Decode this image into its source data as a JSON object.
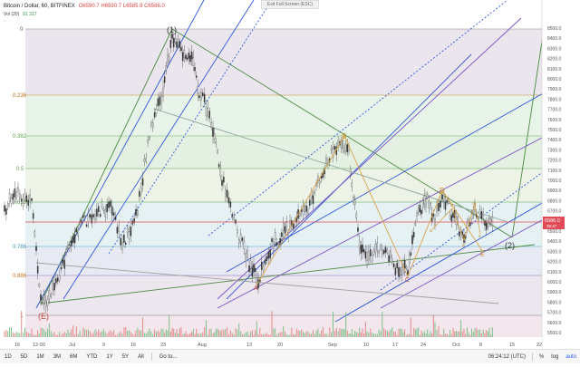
{
  "header": {
    "title": "Bitcoin / Dollar, 60, BITFINEX",
    "ohlc": "O6590.7 H6590.7 L6585.9 C6586.0",
    "vol_label": "Vol (20)",
    "vol_values": "61  317"
  },
  "exit_banner": "Exit Full Screen (ESC)",
  "fib_levels": [
    "0",
    "0.236",
    "0.382",
    "0.5",
    "0.618",
    "0.786",
    "0.886",
    "1"
  ],
  "price_ticks": [
    "8500.0",
    "8400.0",
    "8300.0",
    "8200.0",
    "8100.0",
    "8000.0",
    "7900.0",
    "7800.0",
    "7700.0",
    "7600.0",
    "7500.0",
    "7400.0",
    "7300.0",
    "7200.0",
    "7100.0",
    "7000.0",
    "6900.0",
    "6800.0",
    "6700.0",
    "6600.0",
    "6500.0",
    "6400.0",
    "6300.0",
    "6200.0",
    "6100.0",
    "6000.0",
    "5900.0",
    "5800.0",
    "5700.0",
    "5600.0",
    "5500.0"
  ],
  "current_price": "6586.0",
  "current_price_sub": "35:47",
  "time_ticks": [
    "16",
    "12:00",
    "Jul",
    "9",
    "16",
    "23",
    "Aug",
    "13",
    "20",
    "Sep",
    "10",
    "17",
    "24",
    "Oct",
    "8",
    "15",
    "22"
  ],
  "wave_labels": [
    "(1)",
    "(2)",
    "(E)",
    "A",
    "B",
    "C",
    "D",
    "E",
    "a",
    "b",
    "c",
    "d",
    "e"
  ],
  "bottom_bar": {
    "ranges": [
      "1D",
      "5D",
      "1M",
      "3M",
      "6M",
      "YTD",
      "1Y",
      "5Y",
      "All"
    ],
    "goto": "Go to...",
    "time": "06:24:12 (UTC)",
    "pct": "%",
    "log": "log",
    "auto": "auto"
  },
  "colors": {
    "fib_bands": [
      "#e8e0ec",
      "#e6f2e6",
      "#dcecdc",
      "#e6f0e0",
      "#e8f3e8",
      "#e0ecf4",
      "#e6e8f2",
      "#efe0ea"
    ],
    "line_blue": "#2e57d8",
    "line_green": "#4b8a3f",
    "line_purple": "#7b52c8",
    "wave_orange": "#d9a34a",
    "price_line": "#e04b55"
  }
}
